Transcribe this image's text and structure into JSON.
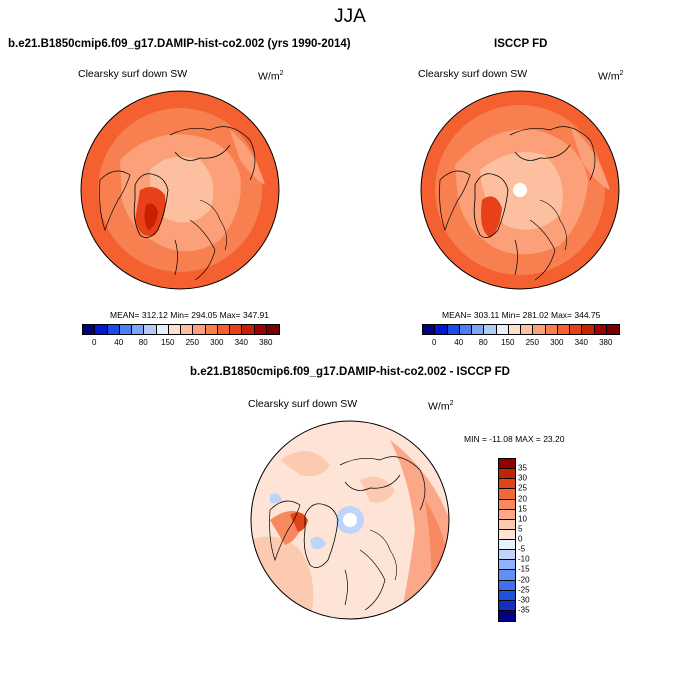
{
  "figure": {
    "title": "JJA"
  },
  "panels": [
    {
      "title": "b.e21.B1850cmip6.f09_g17.DAMIP-hist-co2.002 (yrs 1990-2014)",
      "variable": "Clearsky surf down SW",
      "units_base": "W/m",
      "units_exp": "2",
      "stats": "MEAN= 312.12  Min= 294.05  Max= 347.91",
      "mean": 312.12,
      "min": 294.05,
      "max": 347.91,
      "has_pole_hole": false
    },
    {
      "title": "ISCCP FD",
      "variable": "Clearsky surf down SW",
      "units_base": "W/m",
      "units_exp": "2",
      "stats": "MEAN= 303.11  Min= 281.02  Max= 344.75",
      "mean": 303.11,
      "min": 281.02,
      "max": 344.75,
      "has_pole_hole": true
    },
    {
      "title": "b.e21.B1850cmip6.f09_g17.DAMIP-hist-co2.002 - ISCCP FD",
      "variable": "Clearsky surf down SW",
      "units_base": "W/m",
      "units_exp": "2",
      "stats": "MIN = -11.08 MAX =  23.20",
      "min": -11.08,
      "max": 23.2,
      "has_pole_hole": true
    }
  ],
  "colorbar_abs": {
    "colors": [
      "#000080",
      "#0019cc",
      "#1a4ce6",
      "#4c7ff0",
      "#7fa6f4",
      "#b2ccf8",
      "#e6f0fc",
      "#fde0cc",
      "#fcc0a0",
      "#fba078",
      "#f88050",
      "#f46030",
      "#e84018",
      "#c82000",
      "#a00000",
      "#780000"
    ],
    "labels": [
      "0",
      "40",
      "80",
      "150",
      "250",
      "300",
      "340",
      "380"
    ]
  },
  "colorbar_diff": {
    "colors": [
      "#000080",
      "#1030c0",
      "#2050e0",
      "#4070f0",
      "#6090f4",
      "#90b0f8",
      "#c0d4fa",
      "#e8f0fc",
      "#fde4d6",
      "#fccab0",
      "#faa888",
      "#f88860",
      "#f26838",
      "#e04418",
      "#c02400",
      "#900000"
    ],
    "labels": [
      "35",
      "30",
      "25",
      "20",
      "15",
      "10",
      "5",
      "0",
      "-5",
      "-10",
      "-15",
      "-20",
      "-25",
      "-30",
      "-35"
    ]
  },
  "chart_data": [
    {
      "type": "heatmap",
      "title": "b.e21.B1850cmip6.f09_g17.DAMIP-hist-co2.002 (yrs 1990-2014)",
      "subtitle": "Clearsky surf down SW",
      "units": "W/m2",
      "season": "JJA",
      "projection": "north polar stereographic",
      "stats": {
        "mean": 312.12,
        "min": 294.05,
        "max": 347.91
      },
      "colorbar_levels": [
        0,
        40,
        80,
        150,
        250,
        300,
        340,
        380
      ]
    },
    {
      "type": "heatmap",
      "title": "ISCCP FD",
      "subtitle": "Clearsky surf down SW",
      "units": "W/m2",
      "season": "JJA",
      "projection": "north polar stereographic",
      "stats": {
        "mean": 303.11,
        "min": 281.02,
        "max": 344.75
      },
      "colorbar_levels": [
        0,
        40,
        80,
        150,
        250,
        300,
        340,
        380
      ]
    },
    {
      "type": "heatmap",
      "title": "b.e21.B1850cmip6.f09_g17.DAMIP-hist-co2.002 - ISCCP FD",
      "subtitle": "Clearsky surf down SW",
      "units": "W/m2",
      "season": "JJA",
      "projection": "north polar stereographic",
      "stats": {
        "min": -11.08,
        "max": 23.2
      },
      "colorbar_levels": [
        35,
        30,
        25,
        20,
        15,
        10,
        5,
        0,
        -5,
        -10,
        -15,
        -20,
        -25,
        -30,
        -35
      ]
    }
  ]
}
